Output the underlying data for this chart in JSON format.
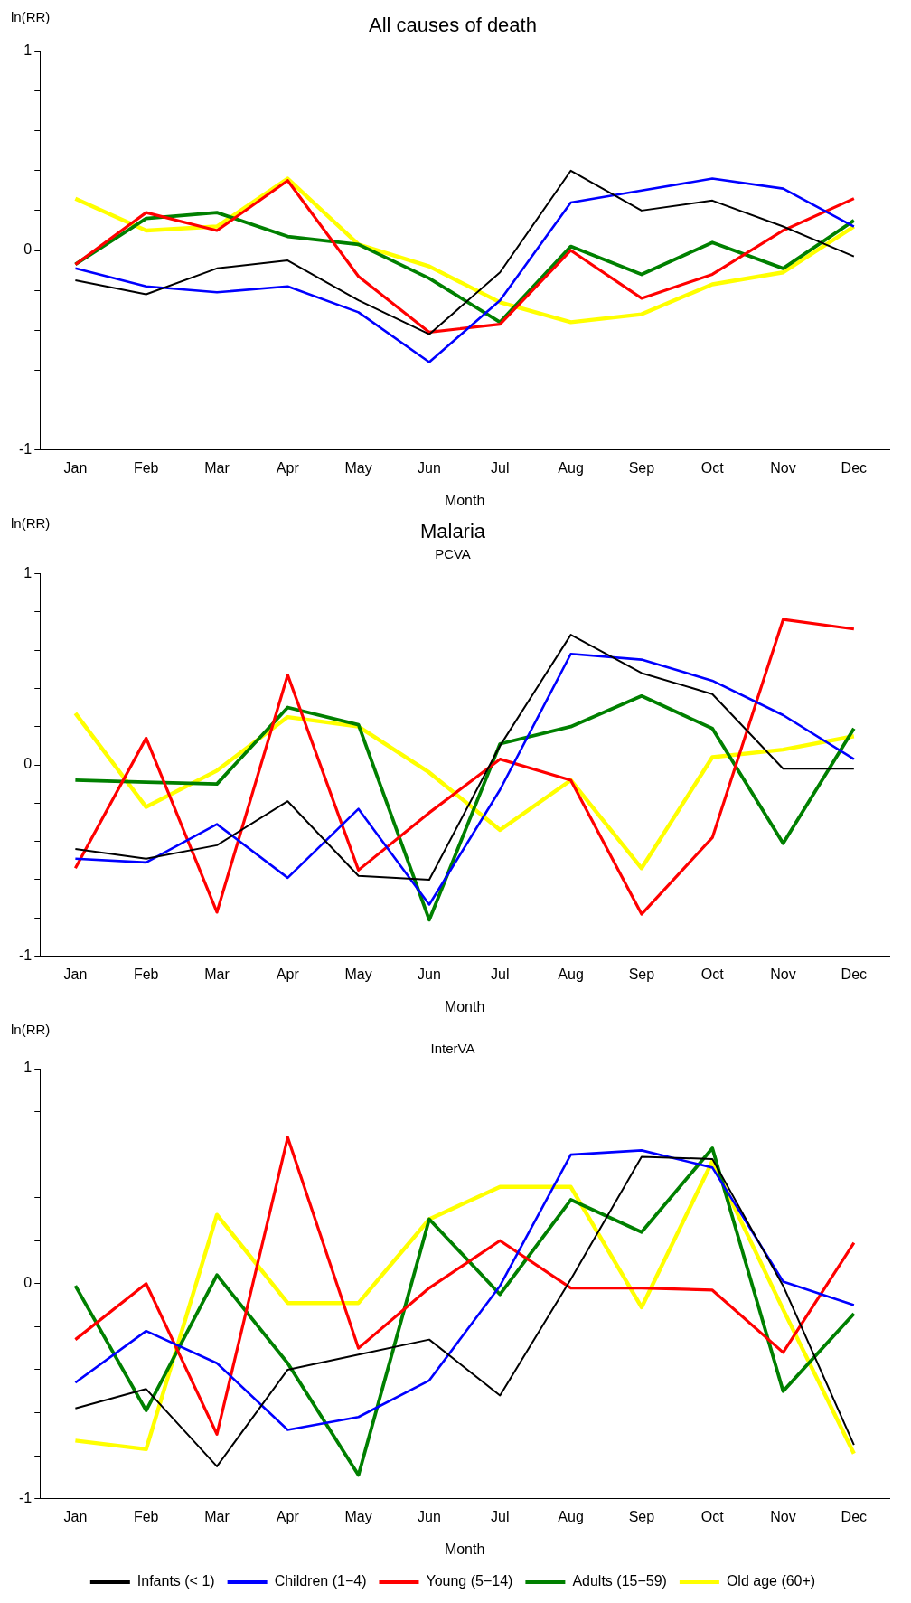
{
  "chart_data": [
    {
      "type": "line",
      "title": "All causes of death",
      "xlabel": "Month",
      "ylabel": "ln(RR)",
      "categories": [
        "Jan",
        "Feb",
        "Mar",
        "Apr",
        "May",
        "Jun",
        "Jul",
        "Aug",
        "Sep",
        "Oct",
        "Nov",
        "Dec"
      ],
      "ylim": [
        -1,
        1
      ],
      "yticks": [
        -1,
        {
          "value": -0.8,
          "label": null
        },
        {
          "value": -0.6,
          "label": null
        },
        {
          "value": -0.4,
          "label": null
        },
        {
          "value": -0.2,
          "label": null
        },
        0,
        {
          "value": 0.2,
          "label": null
        },
        {
          "value": 0.4,
          "label": null
        },
        {
          "value": 0.6,
          "label": null
        },
        {
          "value": 0.8,
          "label": null
        },
        1
      ],
      "grid": false,
      "legend": false,
      "marker": "none",
      "line_style": "solid",
      "series": [
        {
          "color": "#000000",
          "values": [
            -0.15,
            -0.22,
            -0.09,
            -0.05,
            -0.25,
            -0.42,
            -0.11,
            0.4,
            0.2,
            0.25,
            0.12,
            -0.03
          ]
        },
        {
          "color": "#0000ff",
          "values": [
            -0.09,
            -0.18,
            -0.21,
            -0.18,
            -0.31,
            -0.56,
            -0.25,
            0.24,
            0.3,
            0.36,
            0.31,
            0.12
          ]
        },
        {
          "color": "#ff0000",
          "values": [
            -0.07,
            0.19,
            0.1,
            0.35,
            -0.13,
            -0.41,
            -0.37,
            0.0,
            -0.24,
            -0.12,
            0.1,
            0.26
          ]
        },
        {
          "color": "#008000",
          "values": [
            -0.07,
            0.16,
            0.19,
            0.07,
            0.03,
            -0.14,
            -0.36,
            0.02,
            -0.12,
            0.04,
            -0.09,
            0.15
          ]
        },
        {
          "color": "#ffff00",
          "values": [
            0.26,
            0.1,
            0.12,
            0.36,
            0.03,
            -0.08,
            -0.26,
            -0.36,
            -0.32,
            -0.17,
            -0.11,
            0.12
          ]
        }
      ]
    },
    {
      "type": "line",
      "title": "Malaria",
      "subtitle": "PCVA",
      "xlabel": "Month",
      "ylabel": "ln(RR)",
      "categories": [
        "Jan",
        "Feb",
        "Mar",
        "Apr",
        "May",
        "Jun",
        "Jul",
        "Aug",
        "Sep",
        "Oct",
        "Nov",
        "Dec"
      ],
      "ylim": [
        -1,
        1
      ],
      "yticks": [
        -1,
        {
          "value": -0.8,
          "label": null
        },
        {
          "value": -0.6,
          "label": null
        },
        {
          "value": -0.4,
          "label": null
        },
        {
          "value": -0.2,
          "label": null
        },
        0,
        {
          "value": 0.2,
          "label": null
        },
        {
          "value": 0.4,
          "label": null
        },
        {
          "value": 0.6,
          "label": null
        },
        {
          "value": 0.8,
          "label": null
        },
        1
      ],
      "grid": false,
      "legend": false,
      "marker": "none",
      "line_style": "solid",
      "series": [
        {
          "color": "#000000",
          "values": [
            -0.44,
            -0.49,
            -0.42,
            -0.19,
            -0.58,
            -0.6,
            0.1,
            0.68,
            0.48,
            0.37,
            -0.02,
            -0.02
          ]
        },
        {
          "color": "#0000ff",
          "values": [
            -0.49,
            -0.51,
            -0.31,
            -0.59,
            -0.23,
            -0.73,
            -0.13,
            0.58,
            0.55,
            0.44,
            0.26,
            0.03
          ]
        },
        {
          "color": "#ff0000",
          "values": [
            -0.54,
            0.14,
            -0.77,
            0.47,
            -0.55,
            -0.25,
            0.03,
            -0.08,
            -0.78,
            -0.38,
            0.76,
            0.71
          ]
        },
        {
          "color": "#008000",
          "values": [
            -0.08,
            -0.09,
            -0.1,
            0.3,
            0.21,
            -0.81,
            0.11,
            0.2,
            0.36,
            0.19,
            -0.41,
            0.19
          ]
        },
        {
          "color": "#ffff00",
          "values": [
            0.27,
            -0.22,
            -0.03,
            0.25,
            0.2,
            -0.04,
            -0.34,
            -0.08,
            -0.54,
            0.04,
            0.08,
            0.15
          ]
        }
      ]
    },
    {
      "type": "line",
      "subtitle": "InterVA",
      "xlabel": "Month",
      "ylabel": "ln(RR)",
      "categories": [
        "Jan",
        "Feb",
        "Mar",
        "Apr",
        "May",
        "Jun",
        "Jul",
        "Aug",
        "Sep",
        "Oct",
        "Nov",
        "Dec"
      ],
      "ylim": [
        -1,
        1
      ],
      "yticks": [
        -1,
        {
          "value": -0.8,
          "label": null
        },
        {
          "value": -0.6,
          "label": null
        },
        {
          "value": -0.4,
          "label": null
        },
        {
          "value": -0.2,
          "label": null
        },
        0,
        {
          "value": 0.2,
          "label": null
        },
        {
          "value": 0.4,
          "label": null
        },
        {
          "value": 0.6,
          "label": null
        },
        {
          "value": 0.8,
          "label": null
        },
        1
      ],
      "grid": false,
      "legend": "bottom",
      "marker": "none",
      "line_style": "solid",
      "series": [
        {
          "name": "Infants (< 1)",
          "color": "#000000",
          "values": [
            -0.58,
            -0.49,
            -0.85,
            -0.4,
            -0.33,
            -0.26,
            -0.52,
            0.02,
            0.59,
            0.58,
            -0.01,
            -0.75
          ]
        },
        {
          "name": "Children (1−4)",
          "color": "#0000ff",
          "values": [
            -0.46,
            -0.22,
            -0.37,
            -0.68,
            -0.62,
            -0.45,
            -0.01,
            0.6,
            0.62,
            0.54,
            0.01,
            -0.1
          ]
        },
        {
          "name": "Young (5−14)",
          "color": "#ff0000",
          "values": [
            -0.26,
            0.0,
            -0.7,
            0.68,
            -0.3,
            -0.02,
            0.2,
            -0.02,
            -0.02,
            -0.03,
            -0.32,
            0.19
          ]
        },
        {
          "name": "Adults (15−59)",
          "color": "#008000",
          "values": [
            -0.01,
            -0.59,
            0.04,
            -0.37,
            -0.89,
            0.3,
            -0.05,
            0.39,
            0.24,
            0.63,
            -0.5,
            -0.14
          ]
        },
        {
          "name": "Old age (60+)",
          "color": "#ffff00",
          "values": [
            -0.73,
            -0.77,
            0.32,
            -0.09,
            -0.09,
            0.3,
            0.45,
            0.45,
            -0.11,
            0.57,
            -0.12,
            -0.79
          ]
        }
      ]
    }
  ]
}
